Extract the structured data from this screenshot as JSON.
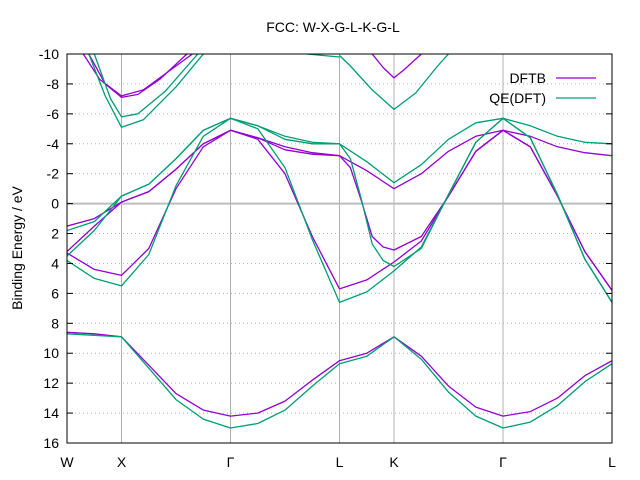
{
  "chart_data": {
    "type": "line",
    "title": "FCC: W-X-G-L-K-G-L",
    "xlabel": "",
    "ylabel": "Binding Energy / eV",
    "ylim": [
      16,
      -10
    ],
    "xlim": [
      0,
      1
    ],
    "y_ticks": [
      "-10",
      "-8",
      "-6",
      "-4",
      "-2",
      "0",
      "2",
      "4",
      "6",
      "8",
      "10",
      "12",
      "14",
      "16"
    ],
    "x_ticks": [
      {
        "label": "W",
        "x": 0.0
      },
      {
        "label": "X",
        "x": 0.1
      },
      {
        "label": "Γ",
        "x": 0.3
      },
      {
        "label": "L",
        "x": 0.5
      },
      {
        "label": "K",
        "x": 0.6
      },
      {
        "label": "Γ",
        "x": 0.8
      },
      {
        "label": "L",
        "x": 1.0
      }
    ],
    "grid": "dotted horizontal, solid vertical at high-symmetry points",
    "zero_line": 0,
    "legend": "top-right",
    "series": [
      {
        "name": "DFTB",
        "color": "#9400d3",
        "bands": [
          [
            [
              0.0,
              8.6
            ],
            [
              0.05,
              8.7
            ],
            [
              0.1,
              8.9
            ],
            [
              0.15,
              10.8
            ],
            [
              0.2,
              12.7
            ],
            [
              0.25,
              13.8
            ],
            [
              0.3,
              14.2
            ],
            [
              0.35,
              14.0
            ],
            [
              0.4,
              13.2
            ],
            [
              0.45,
              11.8
            ],
            [
              0.5,
              10.5
            ],
            [
              0.55,
              10.0
            ],
            [
              0.6,
              8.9
            ],
            [
              0.65,
              10.2
            ],
            [
              0.7,
              12.2
            ],
            [
              0.75,
              13.6
            ],
            [
              0.8,
              14.2
            ],
            [
              0.85,
              13.9
            ],
            [
              0.9,
              13.0
            ],
            [
              0.95,
              11.5
            ],
            [
              1.0,
              10.5
            ]
          ],
          [
            [
              0.0,
              3.3
            ],
            [
              0.05,
              4.4
            ],
            [
              0.1,
              4.8
            ],
            [
              0.15,
              3.0
            ],
            [
              0.2,
              -1.0
            ],
            [
              0.25,
              -3.8
            ],
            [
              0.3,
              -4.9
            ],
            [
              0.35,
              -4.3
            ],
            [
              0.4,
              -2.0
            ],
            [
              0.45,
              2.2
            ],
            [
              0.5,
              5.7
            ],
            [
              0.55,
              5.1
            ],
            [
              0.6,
              3.9
            ],
            [
              0.65,
              2.5
            ],
            [
              0.7,
              -0.5
            ],
            [
              0.75,
              -3.5
            ],
            [
              0.8,
              -4.9
            ],
            [
              0.85,
              -3.8
            ],
            [
              0.9,
              -0.5
            ],
            [
              0.95,
              3.2
            ],
            [
              1.0,
              5.8
            ]
          ],
          [
            [
              0.0,
              3.2
            ],
            [
              0.05,
              1.5
            ],
            [
              0.1,
              -0.1
            ],
            [
              0.15,
              -0.8
            ],
            [
              0.2,
              -2.3
            ],
            [
              0.25,
              -4.0
            ],
            [
              0.3,
              -4.9
            ],
            [
              0.35,
              -4.4
            ],
            [
              0.4,
              -3.8
            ],
            [
              0.45,
              -3.4
            ],
            [
              0.5,
              -3.2
            ],
            [
              0.55,
              -2.2
            ],
            [
              0.6,
              -1.0
            ],
            [
              0.65,
              -2.0
            ],
            [
              0.7,
              -3.5
            ],
            [
              0.75,
              -4.5
            ],
            [
              0.8,
              -4.9
            ],
            [
              0.85,
              -4.5
            ],
            [
              0.9,
              -3.8
            ],
            [
              0.95,
              -3.4
            ],
            [
              1.0,
              -3.2
            ]
          ],
          [
            [
              0.0,
              1.5
            ],
            [
              0.05,
              1.0
            ],
            [
              0.1,
              -0.1
            ],
            [
              0.15,
              -0.8
            ],
            [
              0.2,
              -2.3
            ],
            [
              0.25,
              -4.0
            ],
            [
              0.3,
              -4.9
            ],
            [
              0.35,
              -4.4
            ],
            [
              0.4,
              -3.6
            ],
            [
              0.45,
              -3.3
            ],
            [
              0.5,
              -3.2
            ],
            [
              0.52,
              -2.4
            ],
            [
              0.54,
              -0.2
            ],
            [
              0.56,
              2.2
            ],
            [
              0.58,
              2.9
            ],
            [
              0.6,
              3.1
            ],
            [
              0.65,
              2.2
            ],
            [
              0.7,
              -0.5
            ],
            [
              0.75,
              -3.5
            ],
            [
              0.8,
              -4.9
            ],
            [
              0.85,
              -3.8
            ],
            [
              0.9,
              -0.5
            ],
            [
              0.95,
              3.2
            ],
            [
              1.0,
              5.8
            ]
          ],
          [
            [
              0.04,
              -10.0
            ],
            [
              0.07,
              -8.0
            ],
            [
              0.1,
              -7.1
            ],
            [
              0.13,
              -7.3
            ],
            [
              0.17,
              -8.3
            ],
            [
              0.22,
              -10.0
            ]
          ],
          [
            [
              0.03,
              -10.0
            ],
            [
              0.06,
              -8.3
            ],
            [
              0.1,
              -7.2
            ],
            [
              0.14,
              -7.6
            ],
            [
              0.2,
              -9.2
            ],
            [
              0.23,
              -10.0
            ]
          ],
          [
            [
              0.56,
              -10.0
            ],
            [
              0.58,
              -9.1
            ],
            [
              0.6,
              -8.4
            ],
            [
              0.62,
              -9.0
            ],
            [
              0.65,
              -10.0
            ]
          ]
        ]
      },
      {
        "name": "QE(DFT)",
        "color": "#009e73",
        "bands": [
          [
            [
              0.0,
              8.7
            ],
            [
              0.05,
              8.8
            ],
            [
              0.1,
              8.9
            ],
            [
              0.15,
              11.0
            ],
            [
              0.2,
              13.1
            ],
            [
              0.25,
              14.4
            ],
            [
              0.3,
              15.0
            ],
            [
              0.35,
              14.7
            ],
            [
              0.4,
              13.8
            ],
            [
              0.45,
              12.2
            ],
            [
              0.5,
              10.7
            ],
            [
              0.55,
              10.2
            ],
            [
              0.6,
              8.9
            ],
            [
              0.65,
              10.4
            ],
            [
              0.7,
              12.6
            ],
            [
              0.75,
              14.2
            ],
            [
              0.8,
              15.0
            ],
            [
              0.85,
              14.6
            ],
            [
              0.9,
              13.5
            ],
            [
              0.95,
              11.9
            ],
            [
              1.0,
              10.7
            ]
          ],
          [
            [
              0.0,
              3.8
            ],
            [
              0.05,
              5.0
            ],
            [
              0.1,
              5.5
            ],
            [
              0.15,
              3.4
            ],
            [
              0.2,
              -1.2
            ],
            [
              0.25,
              -4.5
            ],
            [
              0.3,
              -5.7
            ],
            [
              0.35,
              -5.0
            ],
            [
              0.4,
              -2.4
            ],
            [
              0.45,
              2.4
            ],
            [
              0.5,
              6.6
            ],
            [
              0.55,
              5.9
            ],
            [
              0.6,
              4.5
            ],
            [
              0.65,
              2.9
            ],
            [
              0.7,
              -0.6
            ],
            [
              0.75,
              -4.1
            ],
            [
              0.8,
              -5.7
            ],
            [
              0.85,
              -4.4
            ],
            [
              0.9,
              -0.6
            ],
            [
              0.95,
              3.7
            ],
            [
              1.0,
              6.6
            ]
          ],
          [
            [
              0.0,
              3.5
            ],
            [
              0.05,
              1.8
            ],
            [
              0.1,
              -0.5
            ],
            [
              0.15,
              -1.3
            ],
            [
              0.2,
              -3.0
            ],
            [
              0.25,
              -4.9
            ],
            [
              0.3,
              -5.7
            ],
            [
              0.35,
              -5.2
            ],
            [
              0.4,
              -4.5
            ],
            [
              0.45,
              -4.1
            ],
            [
              0.5,
              -4.0
            ],
            [
              0.55,
              -2.8
            ],
            [
              0.6,
              -1.4
            ],
            [
              0.65,
              -2.6
            ],
            [
              0.7,
              -4.3
            ],
            [
              0.75,
              -5.4
            ],
            [
              0.8,
              -5.7
            ],
            [
              0.85,
              -5.2
            ],
            [
              0.9,
              -4.5
            ],
            [
              0.95,
              -4.1
            ],
            [
              1.0,
              -4.0
            ]
          ],
          [
            [
              0.0,
              1.8
            ],
            [
              0.05,
              1.2
            ],
            [
              0.1,
              -0.5
            ],
            [
              0.15,
              -1.3
            ],
            [
              0.2,
              -3.0
            ],
            [
              0.25,
              -4.9
            ],
            [
              0.3,
              -5.7
            ],
            [
              0.35,
              -5.2
            ],
            [
              0.4,
              -4.3
            ],
            [
              0.45,
              -4.0
            ],
            [
              0.5,
              -4.0
            ],
            [
              0.52,
              -3.0
            ],
            [
              0.54,
              -0.3
            ],
            [
              0.56,
              2.7
            ],
            [
              0.58,
              3.8
            ],
            [
              0.6,
              4.2
            ],
            [
              0.65,
              3.0
            ],
            [
              0.7,
              -0.6
            ],
            [
              0.75,
              -4.1
            ],
            [
              0.8,
              -5.7
            ],
            [
              0.85,
              -4.4
            ],
            [
              0.9,
              -0.6
            ],
            [
              0.95,
              3.7
            ],
            [
              1.0,
              6.6
            ]
          ],
          [
            [
              0.05,
              -10.0
            ],
            [
              0.08,
              -7.0
            ],
            [
              0.1,
              -5.8
            ],
            [
              0.13,
              -6.0
            ],
            [
              0.18,
              -7.5
            ],
            [
              0.24,
              -10.0
            ]
          ],
          [
            [
              0.04,
              -10.0
            ],
            [
              0.07,
              -7.2
            ],
            [
              0.1,
              -5.1
            ],
            [
              0.14,
              -5.6
            ],
            [
              0.2,
              -7.8
            ],
            [
              0.25,
              -10.0
            ]
          ],
          [
            [
              0.5,
              -9.9
            ],
            [
              0.52,
              -9.2
            ],
            [
              0.56,
              -7.6
            ],
            [
              0.6,
              -6.3
            ],
            [
              0.64,
              -7.4
            ],
            [
              0.68,
              -9.2
            ],
            [
              0.7,
              -10.0
            ]
          ],
          [
            [
              0.44,
              -10.0
            ],
            [
              0.5,
              -9.8
            ]
          ]
        ]
      }
    ]
  }
}
